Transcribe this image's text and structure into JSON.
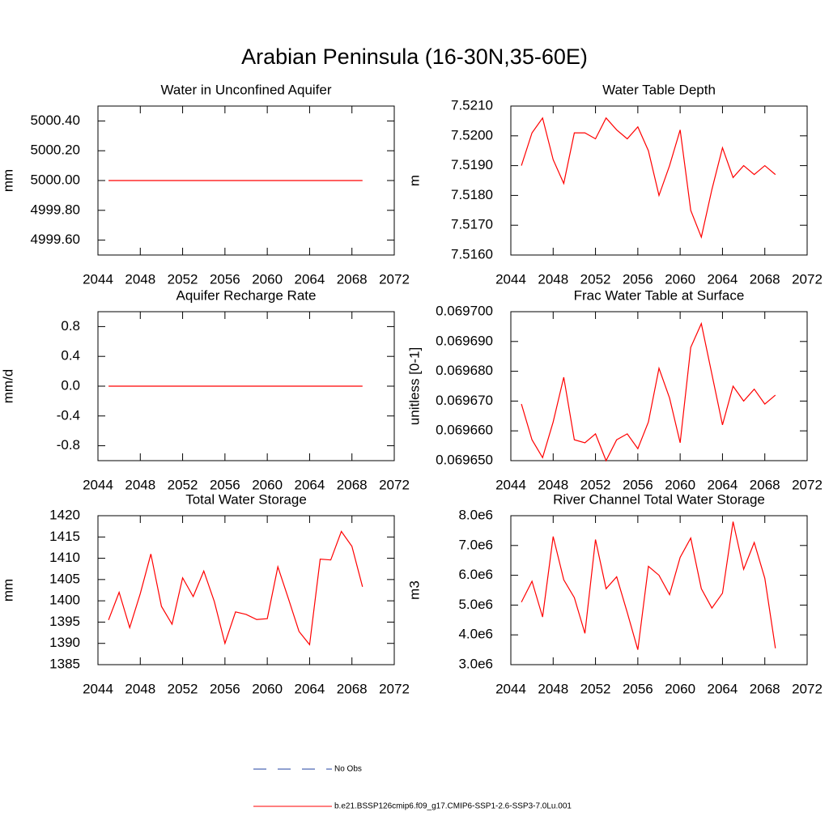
{
  "title": "Arabian Peninsula (16-30N,35-60E)",
  "legend": [
    {
      "name": "No Obs",
      "color": "#2040a0",
      "dashed": true
    },
    {
      "name": "b.e21.BSSP126cmip6.f09_g17.CMIP6-SSP1-2.6-SSP3-7.0Lu.001",
      "color": "#ff0000",
      "dashed": false
    }
  ],
  "chart_data": [
    {
      "type": "line",
      "title": "Water in Unconfined Aquifer",
      "y_label": "mm",
      "x": [
        2045,
        2046,
        2047,
        2048,
        2049,
        2050,
        2051,
        2052,
        2053,
        2054,
        2055,
        2056,
        2057,
        2058,
        2059,
        2060,
        2061,
        2062,
        2063,
        2064,
        2065,
        2066,
        2067,
        2068,
        2069
      ],
      "series": [
        {
          "color": "#ff0000",
          "values": [
            5000,
            5000,
            5000,
            5000,
            5000,
            5000,
            5000,
            5000,
            5000,
            5000,
            5000,
            5000,
            5000,
            5000,
            5000,
            5000,
            5000,
            5000,
            5000,
            5000,
            5000,
            5000,
            5000,
            5000,
            5000
          ]
        }
      ],
      "xlim": [
        2044,
        2072
      ],
      "xticks": [
        2044,
        2048,
        2052,
        2056,
        2060,
        2064,
        2068,
        2072
      ],
      "ylim": [
        4999.5,
        5000.5
      ],
      "yticks": [
        {
          "value": 4999.6,
          "label": "4999.60"
        },
        {
          "value": 4999.8,
          "label": "4999.80"
        },
        {
          "value": 5000,
          "label": "5000.00"
        },
        {
          "value": 5000.2,
          "label": "5000.20"
        },
        {
          "value": 5000.4,
          "label": "5000.40"
        }
      ]
    },
    {
      "type": "line",
      "title": "Water Table Depth",
      "y_label": "m",
      "x": [
        2045,
        2046,
        2047,
        2048,
        2049,
        2050,
        2051,
        2052,
        2053,
        2054,
        2055,
        2056,
        2057,
        2058,
        2059,
        2060,
        2061,
        2062,
        2063,
        2064,
        2065,
        2066,
        2067,
        2068,
        2069
      ],
      "series": [
        {
          "color": "#ff0000",
          "values": [
            7.519,
            7.5201,
            7.5206,
            7.5192,
            7.5184,
            7.5201,
            7.5201,
            7.5199,
            7.5206,
            7.5202,
            7.5199,
            7.5203,
            7.5195,
            7.518,
            7.519,
            7.5202,
            7.5175,
            7.5166,
            7.5182,
            7.5196,
            7.5186,
            7.519,
            7.5187,
            7.519,
            7.5187
          ]
        }
      ],
      "xlim": [
        2044,
        2072
      ],
      "xticks": [
        2044,
        2048,
        2052,
        2056,
        2060,
        2064,
        2068,
        2072
      ],
      "ylim": [
        7.516,
        7.521
      ],
      "yticks": [
        {
          "value": 7.516,
          "label": "7.5160"
        },
        {
          "value": 7.517,
          "label": "7.5170"
        },
        {
          "value": 7.518,
          "label": "7.5180"
        },
        {
          "value": 7.519,
          "label": "7.5190"
        },
        {
          "value": 7.52,
          "label": "7.5200"
        },
        {
          "value": 7.521,
          "label": "7.5210"
        }
      ]
    },
    {
      "type": "line",
      "title": "Aquifer Recharge Rate",
      "y_label": "mm/d",
      "x": [
        2045,
        2046,
        2047,
        2048,
        2049,
        2050,
        2051,
        2052,
        2053,
        2054,
        2055,
        2056,
        2057,
        2058,
        2059,
        2060,
        2061,
        2062,
        2063,
        2064,
        2065,
        2066,
        2067,
        2068,
        2069
      ],
      "series": [
        {
          "color": "#ff0000",
          "values": [
            0,
            0,
            0,
            0,
            0,
            0,
            0,
            0,
            0,
            0,
            0,
            0,
            0,
            0,
            0,
            0,
            0,
            0,
            0,
            0,
            0,
            0,
            0,
            0,
            0
          ]
        }
      ],
      "xlim": [
        2044,
        2072
      ],
      "xticks": [
        2044,
        2048,
        2052,
        2056,
        2060,
        2064,
        2068,
        2072
      ],
      "ylim": [
        -1,
        1
      ],
      "yticks": [
        -0.8,
        -0.4,
        {
          "value": 0,
          "label": "0.0"
        },
        0.4,
        0.8
      ]
    },
    {
      "type": "line",
      "title": "Frac Water Table at Surface",
      "y_label": "unitless [0-1]",
      "x": [
        2045,
        2046,
        2047,
        2048,
        2049,
        2050,
        2051,
        2052,
        2053,
        2054,
        2055,
        2056,
        2057,
        2058,
        2059,
        2060,
        2061,
        2062,
        2063,
        2064,
        2065,
        2066,
        2067,
        2068,
        2069
      ],
      "series": [
        {
          "color": "#ff0000",
          "values": [
            0.069669,
            0.069657,
            0.069651,
            0.069663,
            0.069678,
            0.069657,
            0.069656,
            0.069659,
            0.06965,
            0.069657,
            0.069659,
            0.069654,
            0.069663,
            0.069681,
            0.069671,
            0.069656,
            0.069688,
            0.069696,
            0.069679,
            0.069662,
            0.069675,
            0.06967,
            0.069674,
            0.069669,
            0.069672
          ]
        }
      ],
      "xlim": [
        2044,
        2072
      ],
      "xticks": [
        2044,
        2048,
        2052,
        2056,
        2060,
        2064,
        2068,
        2072
      ],
      "ylim": [
        0.06965,
        0.0697
      ],
      "yticks": [
        {
          "value": 0.06965,
          "label": "0.069650"
        },
        {
          "value": 0.06966,
          "label": "0.069660"
        },
        {
          "value": 0.06967,
          "label": "0.069670"
        },
        {
          "value": 0.06968,
          "label": "0.069680"
        },
        {
          "value": 0.06969,
          "label": "0.069690"
        },
        {
          "value": 0.0697,
          "label": "0.069700"
        }
      ]
    },
    {
      "type": "line",
      "title": "Total Water Storage",
      "y_label": "mm",
      "x": [
        2045,
        2046,
        2047,
        2048,
        2049,
        2050,
        2051,
        2052,
        2053,
        2054,
        2055,
        2056,
        2057,
        2058,
        2059,
        2060,
        2061,
        2062,
        2063,
        2064,
        2065,
        2066,
        2067,
        2068,
        2069
      ],
      "series": [
        {
          "color": "#ff0000",
          "values": [
            1395.5,
            1402,
            1393.7,
            1401.7,
            1411,
            1398.7,
            1394.5,
            1405.4,
            1401,
            1407,
            1399.8,
            1390,
            1397.4,
            1396.8,
            1395.6,
            1395.8,
            1408,
            1400.5,
            1392.8,
            1389.7,
            1409.8,
            1409.6,
            1416.3,
            1412.8,
            1403.3
          ]
        }
      ],
      "xlim": [
        2044,
        2072
      ],
      "xticks": [
        2044,
        2048,
        2052,
        2056,
        2060,
        2064,
        2068,
        2072
      ],
      "ylim": [
        1385,
        1420
      ],
      "yticks": [
        1385,
        1390,
        1395,
        1400,
        1405,
        1410,
        1415,
        1420
      ]
    },
    {
      "type": "line",
      "title": "River Channel Total Water Storage",
      "y_label": "m3",
      "x": [
        2045,
        2046,
        2047,
        2048,
        2049,
        2050,
        2051,
        2052,
        2053,
        2054,
        2055,
        2056,
        2057,
        2058,
        2059,
        2060,
        2061,
        2062,
        2063,
        2064,
        2065,
        2066,
        2067,
        2068,
        2069
      ],
      "series": [
        {
          "color": "#ff0000",
          "values": [
            5100000,
            5800000,
            4600000,
            7300000,
            5850000,
            5250000,
            4050000,
            7200000,
            5550000,
            5950000,
            4750000,
            3500000,
            6300000,
            6000000,
            5350000,
            6600000,
            7250000,
            5550000,
            4900000,
            5400000,
            7800000,
            6200000,
            7100000,
            5900000,
            3550000
          ]
        }
      ],
      "xlim": [
        2044,
        2072
      ],
      "xticks": [
        2044,
        2048,
        2052,
        2056,
        2060,
        2064,
        2068,
        2072
      ],
      "ylim": [
        3000000,
        8000000
      ],
      "yticks": [
        {
          "value": 3000000,
          "label": "3.0e6"
        },
        {
          "value": 4000000,
          "label": "4.0e6"
        },
        {
          "value": 5000000,
          "label": "5.0e6"
        },
        {
          "value": 6000000,
          "label": "6.0e6"
        },
        {
          "value": 7000000,
          "label": "7.0e6"
        },
        {
          "value": 8000000,
          "label": "8.0e6"
        }
      ]
    }
  ]
}
